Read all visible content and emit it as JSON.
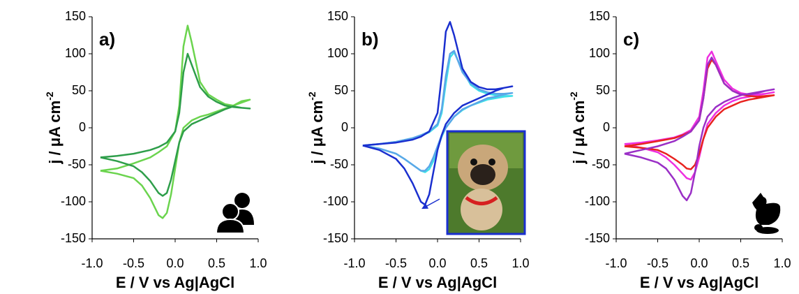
{
  "chart_data": [
    {
      "type": "line",
      "annotation": "a)",
      "xlabel": "E / V vs Ag|AgCl",
      "ylabel": "j / μA cm",
      "ylabel_sup": "-2",
      "x": [
        -0.9,
        -0.7,
        -0.5,
        -0.3,
        -0.2,
        -0.1,
        0,
        0.05,
        0.1,
        0.15,
        0.2,
        0.3,
        0.4,
        0.5,
        0.6,
        0.7,
        0.8,
        0.9,
        0.8,
        0.7,
        0.6,
        0.5,
        0.4,
        0.3,
        0.2,
        0.1,
        0.05,
        0,
        -0.05,
        -0.1,
        -0.15,
        -0.2,
        -0.3,
        -0.4,
        -0.5,
        -0.7,
        -0.9
      ],
      "series": [
        {
          "color": "#2e9e4a",
          "values": [
            -40,
            -38,
            -35,
            -30,
            -26,
            -20,
            -5,
            20,
            75,
            100,
            85,
            55,
            42,
            35,
            30,
            28,
            27,
            26,
            27,
            29,
            25,
            20,
            15,
            10,
            5,
            -5,
            -20,
            -45,
            -70,
            -88,
            -92,
            -88,
            -72,
            -60,
            -52,
            -45,
            -40
          ]
        },
        {
          "color": "#6bd44e",
          "values": [
            -58,
            -55,
            -48,
            -40,
            -33,
            -25,
            -5,
            30,
            110,
            138,
            115,
            62,
            45,
            38,
            32,
            30,
            34,
            38,
            36,
            30,
            26,
            22,
            18,
            15,
            10,
            0,
            -20,
            -55,
            -90,
            -115,
            -122,
            -118,
            -95,
            -78,
            -68,
            -62,
            -58
          ]
        }
      ],
      "xlim": [
        -1.0,
        1.0
      ],
      "xticks": [
        {
          "value": -1.0,
          "label": "-1.0"
        },
        -0.5,
        {
          "value": 0.0,
          "label": "0.0"
        },
        0.5,
        {
          "value": 1.0,
          "label": "1.0"
        }
      ],
      "ylim": [
        -150,
        150
      ],
      "yticks": [
        -150,
        -100,
        -50,
        0,
        50,
        100,
        150
      ]
    },
    {
      "type": "line",
      "annotation": "b)",
      "xlabel": "E / V vs Ag|AgCl",
      "ylabel": "j / μA cm",
      "ylabel_sup": "-2",
      "x": [
        -0.9,
        -0.7,
        -0.5,
        -0.3,
        -0.2,
        -0.1,
        0,
        0.05,
        0.1,
        0.15,
        0.2,
        0.3,
        0.4,
        0.5,
        0.6,
        0.7,
        0.8,
        0.9,
        0.8,
        0.7,
        0.6,
        0.5,
        0.4,
        0.3,
        0.2,
        0.1,
        0.05,
        0,
        -0.05,
        -0.1,
        -0.15,
        -0.2,
        -0.3,
        -0.4,
        -0.5,
        -0.7,
        -0.9
      ],
      "series": [
        {
          "color": "#1a2fcf",
          "values": [
            -24,
            -22,
            -20,
            -16,
            -12,
            -5,
            20,
            70,
            130,
            143,
            125,
            80,
            62,
            55,
            52,
            52,
            54,
            56,
            54,
            50,
            45,
            40,
            35,
            30,
            20,
            5,
            -10,
            -30,
            -60,
            -90,
            -104,
            -100,
            -75,
            -55,
            -42,
            -30,
            -24
          ]
        },
        {
          "color": "#5aa7e8",
          "values": [
            -24,
            -22,
            -19,
            -14,
            -10,
            -5,
            5,
            25,
            70,
            100,
            104,
            75,
            60,
            52,
            48,
            46,
            46,
            47,
            45,
            42,
            40,
            35,
            30,
            25,
            15,
            0,
            -10,
            -25,
            -40,
            -52,
            -58,
            -58,
            -50,
            -42,
            -35,
            -28,
            -24
          ]
        },
        {
          "color": "#3fe0e8",
          "values": [
            -24,
            -22,
            -19,
            -14,
            -11,
            -6,
            3,
            20,
            60,
            95,
            102,
            78,
            58,
            50,
            46,
            44,
            43,
            43,
            42,
            40,
            38,
            34,
            30,
            24,
            15,
            0,
            -12,
            -28,
            -45,
            -56,
            -60,
            -58,
            -50,
            -42,
            -35,
            -28,
            -24
          ]
        }
      ],
      "xlim": [
        -1.0,
        1.0
      ],
      "xticks": [
        {
          "value": -1.0,
          "label": "-1.0"
        },
        -0.5,
        {
          "value": 0.0,
          "label": "0.0"
        },
        0.5,
        {
          "value": 1.0,
          "label": "1.0"
        }
      ],
      "ylim": [
        -150,
        150
      ],
      "yticks": [
        -150,
        -100,
        -50,
        0,
        50,
        100,
        150
      ]
    },
    {
      "type": "line",
      "annotation": "c)",
      "xlabel": "E / V vs Ag|AgCl",
      "ylabel": "j / μA cm",
      "ylabel_sup": "-2",
      "x": [
        -0.9,
        -0.7,
        -0.5,
        -0.3,
        -0.2,
        -0.1,
        0,
        0.05,
        0.1,
        0.15,
        0.2,
        0.3,
        0.4,
        0.5,
        0.6,
        0.7,
        0.8,
        0.9,
        0.8,
        0.7,
        0.6,
        0.5,
        0.4,
        0.3,
        0.2,
        0.1,
        0.05,
        0,
        -0.05,
        -0.1,
        -0.15,
        -0.2,
        -0.3,
        -0.4,
        -0.5,
        -0.7,
        -0.9
      ],
      "series": [
        {
          "color": "#9a2fc6",
          "values": [
            -35,
            -30,
            -25,
            -18,
            -12,
            -5,
            10,
            40,
            85,
            95,
            85,
            60,
            50,
            45,
            45,
            47,
            50,
            52,
            50,
            48,
            46,
            44,
            40,
            35,
            28,
            15,
            0,
            -25,
            -60,
            -88,
            -98,
            -92,
            -70,
            -55,
            -47,
            -40,
            -35
          ]
        },
        {
          "color": "#e8221e",
          "values": [
            -25,
            -22,
            -18,
            -14,
            -10,
            -5,
            10,
            40,
            80,
            92,
            85,
            60,
            50,
            45,
            43,
            42,
            43,
            44,
            42,
            40,
            38,
            35,
            30,
            25,
            15,
            0,
            -15,
            -35,
            -50,
            -56,
            -55,
            -50,
            -42,
            -35,
            -30,
            -27,
            -25
          ]
        },
        {
          "color": "#ee2fe0",
          "values": [
            -22,
            -20,
            -17,
            -13,
            -9,
            -3,
            15,
            50,
            95,
            103,
            90,
            65,
            53,
            47,
            45,
            45,
            46,
            48,
            46,
            44,
            42,
            40,
            36,
            30,
            20,
            5,
            -15,
            -40,
            -60,
            -70,
            -68,
            -62,
            -50,
            -40,
            -33,
            -27,
            -22
          ]
        }
      ],
      "xlim": [
        -1.0,
        1.0
      ],
      "xticks": [
        {
          "value": -1.0,
          "label": "-1.0"
        },
        -0.5,
        {
          "value": 0.0,
          "label": "0.0"
        },
        0.5,
        {
          "value": 1.0,
          "label": "1.0"
        }
      ],
      "ylim": [
        -150,
        150
      ],
      "yticks": [
        -150,
        -100,
        -50,
        0,
        50,
        100,
        150
      ]
    }
  ]
}
